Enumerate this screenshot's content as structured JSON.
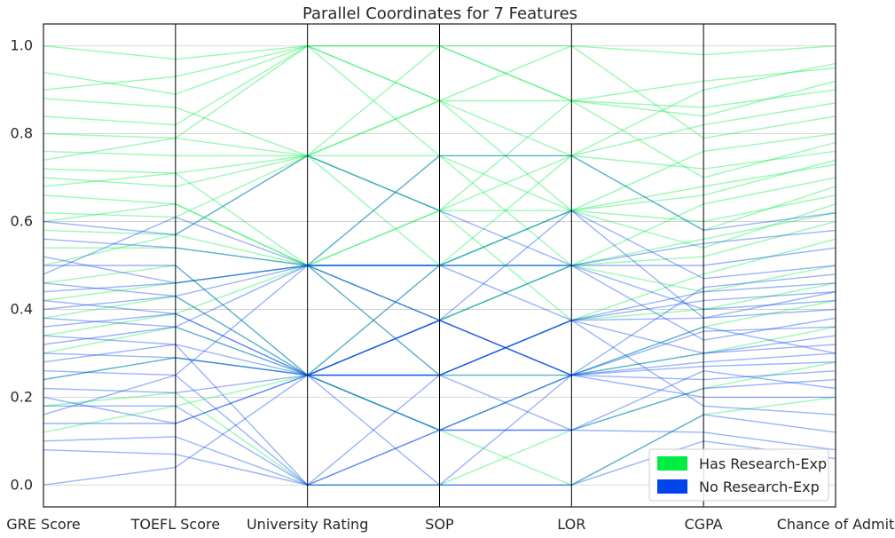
{
  "chart_data": {
    "type": "parallel_coordinates",
    "title": "Parallel Coordinates for 7 Features",
    "axes": [
      "GRE Score",
      "TOEFL Score",
      "University Rating",
      "SOP",
      "LOR",
      "CGPA",
      "Chance of Admit"
    ],
    "ylim": [
      -0.05,
      1.05
    ],
    "yticks": [
      0.0,
      0.2,
      0.4,
      0.6,
      0.8,
      1.0
    ],
    "ytick_labels": [
      "0.0",
      "0.2",
      "0.4",
      "0.6",
      "0.8",
      "1.0"
    ],
    "grid": "horizontal",
    "legend_position": "bottom-right",
    "series": [
      {
        "name": "Has Research-Exp",
        "color": "#00ee44",
        "lines": [
          [
            1.0,
            0.97,
            1.0,
            1.0,
            1.0,
            0.98,
            1.0
          ],
          [
            0.94,
            0.89,
            1.0,
            0.875,
            0.875,
            0.92,
            0.95
          ],
          [
            0.88,
            0.86,
            0.75,
            1.0,
            0.875,
            0.86,
            0.9
          ],
          [
            0.84,
            0.82,
            1.0,
            0.75,
            0.75,
            0.82,
            0.87
          ],
          [
            0.8,
            0.79,
            0.75,
            0.875,
            1.0,
            0.79,
            0.84
          ],
          [
            0.76,
            0.75,
            0.75,
            0.75,
            0.625,
            0.76,
            0.8
          ],
          [
            0.72,
            0.71,
            0.5,
            0.625,
            0.75,
            0.72,
            0.76
          ],
          [
            0.7,
            0.68,
            0.75,
            0.5,
            0.625,
            0.68,
            0.73
          ],
          [
            0.66,
            0.64,
            0.5,
            0.75,
            0.5,
            0.64,
            0.7
          ],
          [
            0.62,
            0.61,
            0.75,
            0.625,
            0.875,
            0.7,
            0.78
          ],
          [
            0.58,
            0.57,
            0.5,
            0.5,
            0.625,
            0.6,
            0.66
          ],
          [
            0.54,
            0.54,
            0.5,
            0.375,
            0.5,
            0.56,
            0.62
          ],
          [
            0.9,
            0.93,
            1.0,
            0.875,
            0.75,
            0.9,
            0.96
          ],
          [
            0.46,
            0.5,
            0.25,
            0.5,
            0.5,
            0.52,
            0.6
          ],
          [
            0.42,
            0.46,
            0.5,
            0.625,
            0.375,
            0.48,
            0.56
          ],
          [
            0.38,
            0.43,
            0.25,
            0.375,
            0.5,
            0.44,
            0.5
          ],
          [
            0.34,
            0.39,
            0.5,
            0.25,
            0.375,
            0.4,
            0.46
          ],
          [
            0.24,
            0.29,
            0.25,
            0.125,
            0.25,
            0.3,
            0.36
          ],
          [
            0.18,
            0.21,
            0.0,
            0.0,
            0.125,
            0.22,
            0.28
          ],
          [
            0.74,
            0.79,
            1.0,
            1.0,
            0.875,
            0.84,
            0.92
          ],
          [
            0.68,
            0.71,
            0.75,
            0.625,
            0.625,
            0.66,
            0.74
          ],
          [
            0.6,
            0.64,
            0.5,
            0.5,
            0.75,
            0.58,
            0.68
          ],
          [
            0.5,
            0.57,
            0.75,
            0.875,
            0.625,
            0.54,
            0.64
          ],
          [
            0.3,
            0.36,
            0.25,
            0.25,
            0.25,
            0.36,
            0.42
          ],
          [
            0.12,
            0.18,
            0.25,
            0.125,
            0.0,
            0.16,
            0.2
          ]
        ]
      },
      {
        "name": "No Research-Exp",
        "color": "#0044ee",
        "lines": [
          [
            0.5,
            0.5,
            0.25,
            0.375,
            0.25,
            0.45,
            0.48
          ],
          [
            0.46,
            0.43,
            0.5,
            0.5,
            0.375,
            0.42,
            0.44
          ],
          [
            0.42,
            0.39,
            0.25,
            0.25,
            0.375,
            0.38,
            0.4
          ],
          [
            0.38,
            0.36,
            0.25,
            0.375,
            0.25,
            0.35,
            0.36
          ],
          [
            0.34,
            0.32,
            0.0,
            0.25,
            0.25,
            0.3,
            0.32
          ],
          [
            0.3,
            0.29,
            0.25,
            0.125,
            0.25,
            0.27,
            0.28
          ],
          [
            0.26,
            0.25,
            0.5,
            0.375,
            0.5,
            0.33,
            0.38
          ],
          [
            0.22,
            0.21,
            0.25,
            0.25,
            0.125,
            0.22,
            0.24
          ],
          [
            0.18,
            0.18,
            0.0,
            0.125,
            0.25,
            0.2,
            0.2
          ],
          [
            0.14,
            0.14,
            0.25,
            0.0,
            0.0,
            0.16,
            0.12
          ],
          [
            0.1,
            0.11,
            0.0,
            0.125,
            0.125,
            0.12,
            0.08
          ],
          [
            0.0,
            0.04,
            0.25,
            0.25,
            0.375,
            0.18,
            0.16
          ],
          [
            0.56,
            0.54,
            0.5,
            0.5,
            0.5,
            0.5,
            0.54
          ],
          [
            0.6,
            0.57,
            0.75,
            0.625,
            0.5,
            0.55,
            0.58
          ],
          [
            0.44,
            0.46,
            0.5,
            0.375,
            0.625,
            0.47,
            0.5
          ],
          [
            0.4,
            0.43,
            0.25,
            0.5,
            0.5,
            0.4,
            0.42
          ],
          [
            0.28,
            0.32,
            0.25,
            0.25,
            0.375,
            0.3,
            0.34
          ],
          [
            0.16,
            0.25,
            0.0,
            0.0,
            0.25,
            0.24,
            0.26
          ],
          [
            0.48,
            0.61,
            0.5,
            0.75,
            0.75,
            0.58,
            0.62
          ],
          [
            0.36,
            0.39,
            0.25,
            0.375,
            0.25,
            0.36,
            0.3
          ],
          [
            0.24,
            0.29,
            0.25,
            0.125,
            0.125,
            0.26,
            0.22
          ],
          [
            0.52,
            0.46,
            0.5,
            0.25,
            0.375,
            0.44,
            0.46
          ],
          [
            0.32,
            0.36,
            0.5,
            0.5,
            0.625,
            0.38,
            0.44
          ],
          [
            0.2,
            0.14,
            0.25,
            0.375,
            0.25,
            0.28,
            0.3
          ],
          [
            0.08,
            0.07,
            0.0,
            0.0,
            0.0,
            0.1,
            0.06
          ]
        ]
      }
    ]
  }
}
